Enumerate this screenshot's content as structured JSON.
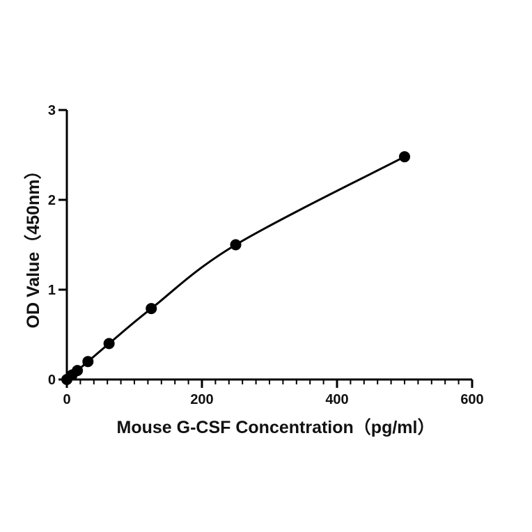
{
  "chart_data": {
    "type": "scatter",
    "xlabel": "Mouse G-CSF Concentration（pg/ml）",
    "ylabel": "OD Value（450nm）",
    "xlim": [
      0,
      600
    ],
    "ylim": [
      0,
      3
    ],
    "x_ticks": [
      0,
      200,
      400,
      600
    ],
    "x_tick_labels": [
      "0",
      "200",
      "400",
      "600"
    ],
    "x_minor_step": 20,
    "y_ticks": [
      0,
      1,
      2,
      3
    ],
    "y_tick_labels": [
      "0",
      "1",
      "2",
      "3"
    ],
    "grid": false,
    "legend": "none",
    "series": [
      {
        "points": [
          {
            "x": 0,
            "y": 0.0
          },
          {
            "x": 7.8,
            "y": 0.05
          },
          {
            "x": 15.6,
            "y": 0.1
          },
          {
            "x": 31.25,
            "y": 0.2
          },
          {
            "x": 62.5,
            "y": 0.4
          },
          {
            "x": 125,
            "y": 0.79
          },
          {
            "x": 250,
            "y": 1.5
          },
          {
            "x": 500,
            "y": 2.48
          }
        ],
        "fit": "curve",
        "color": "#000000"
      }
    ]
  }
}
